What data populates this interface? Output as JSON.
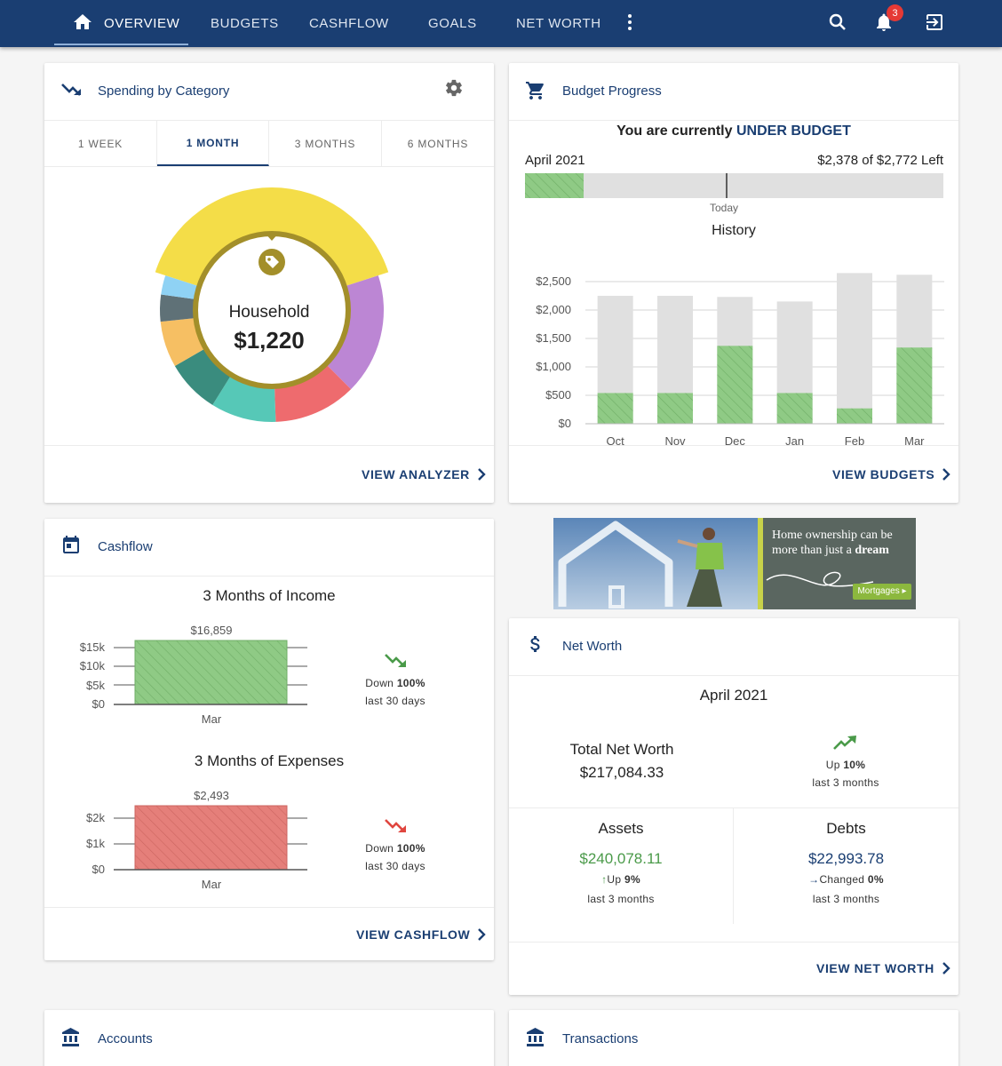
{
  "nav": {
    "tabs": [
      {
        "label": "OVERVIEW",
        "active": true
      },
      {
        "label": "BUDGETS"
      },
      {
        "label": "CASHFLOW"
      },
      {
        "label": "GOALS"
      },
      {
        "label": "NET WORTH"
      }
    ],
    "notification_count": "3",
    "icons": [
      "home-icon",
      "more-vert-icon",
      "search-icon",
      "bell-icon",
      "logout-icon"
    ]
  },
  "spending": {
    "title": "Spending by Category",
    "tabs": [
      "1 WEEK",
      "1 MONTH",
      "3 MONTHS",
      "6 MONTHS"
    ],
    "active_tab": "1 MONTH",
    "selected_category": "Household",
    "selected_amount": "$1,220",
    "link": "VIEW ANALYZER",
    "segment_colors": [
      "#f4dd48",
      "#bc86d4",
      "#ee6b6e",
      "#56c8b7",
      "#3a8c7e",
      "#f6bf63",
      "#5f7177",
      "#8fd2f4"
    ]
  },
  "budget": {
    "title": "Budget Progress",
    "status_prefix": "You are currently",
    "status": "UNDER BUDGET",
    "month": "April 2021",
    "left": "$2,378 of $2,772 Left",
    "today_label": "Today",
    "history_title": "History",
    "link": "VIEW BUDGETS"
  },
  "chart_data": {
    "type": "bar",
    "title": "History",
    "categories": [
      "Oct",
      "Nov",
      "Dec",
      "Jan",
      "Feb",
      "Mar"
    ],
    "series": [
      {
        "values": [
          2250,
          2250,
          2230,
          2150,
          2650,
          2620
        ]
      },
      {
        "values": [
          540,
          540,
          1370,
          540,
          270,
          1340
        ]
      }
    ],
    "yticks": [
      "$2,500",
      "$2,000",
      "$1,500",
      "$1,000",
      "$500",
      "$0"
    ],
    "ylim": [
      0,
      2500
    ],
    "grid": true,
    "colors": {
      "budget": "#e0e0e0",
      "spent": "#8fca85"
    }
  },
  "cashflow": {
    "title": "Cashflow",
    "income_title": "3 Months of Income",
    "income_value": "$16,859",
    "income_ticks": [
      "$15k",
      "$10k",
      "$5k",
      "$0"
    ],
    "income_month": "Mar",
    "income_trend": "Down",
    "income_pct": "100%",
    "income_period": "last 30 days",
    "expenses_title": "3 Months of Expenses",
    "expenses_value": "$2,493",
    "expenses_ticks": [
      "$2k",
      "$1k",
      "$0"
    ],
    "expenses_month": "Mar",
    "expenses_trend": "Down",
    "expenses_pct": "100%",
    "expenses_period": "last 30 days",
    "link": "VIEW CASHFLOW"
  },
  "ad": {
    "line1": "Home ownership can be",
    "line2": "more than just a",
    "line2_bold": "dream",
    "button": "Mortgages ▸"
  },
  "networth": {
    "title": "Net Worth",
    "month": "April 2021",
    "total_label": "Total Net Worth",
    "total_value": "$217,084.33",
    "trend": "Up",
    "trend_pct": "10%",
    "trend_period": "last 3 months",
    "assets_label": "Assets",
    "assets_value": "$240,078.11",
    "assets_trend": "Up",
    "assets_pct": "9%",
    "assets_period": "last 3 months",
    "debts_label": "Debts",
    "debts_value": "$22,993.78",
    "debts_trend": "Changed",
    "debts_pct": "0%",
    "debts_period": "last 3 months",
    "link": "VIEW NET WORTH"
  },
  "accounts": {
    "title": "Accounts"
  },
  "transactions": {
    "title": "Transactions"
  }
}
